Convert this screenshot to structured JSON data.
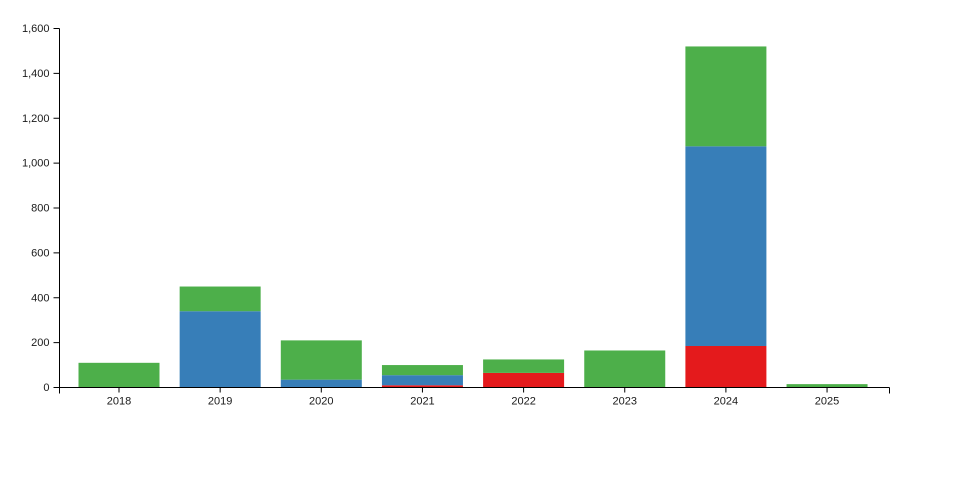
{
  "chart_data": {
    "type": "bar",
    "stacked": true,
    "title": "",
    "xlabel": "",
    "ylabel": "",
    "legend_position": "none",
    "grid": false,
    "background_color": "#ffffff",
    "axis_color": "#000000",
    "tick_label_color": "#1a1a1a",
    "categories": [
      "2018",
      "2019",
      "2020",
      "2021",
      "2022",
      "2023",
      "2024",
      "2025"
    ],
    "series": [
      {
        "name": "red-series",
        "color": "#e41a1c",
        "values": [
          0,
          0,
          0,
          10,
          65,
          0,
          185,
          0
        ]
      },
      {
        "name": "blue-series",
        "color": "#377eb8",
        "values": [
          0,
          340,
          35,
          45,
          0,
          0,
          890,
          0
        ]
      },
      {
        "name": "green-series",
        "color": "#4daf4a",
        "values": [
          110,
          110,
          175,
          45,
          60,
          165,
          445,
          15
        ]
      }
    ],
    "totals": [
      110,
      450,
      210,
      100,
      125,
      165,
      1520,
      15
    ],
    "ylim": [
      0,
      1600
    ],
    "ytick_step": 200,
    "ytick_values": [
      0,
      200,
      400,
      600,
      800,
      1000,
      1200,
      1400,
      1600
    ],
    "ytick_labels": [
      "0",
      "200",
      "400",
      "600",
      "800",
      "1,000",
      "1,200",
      "1,400",
      "1,600"
    ]
  }
}
